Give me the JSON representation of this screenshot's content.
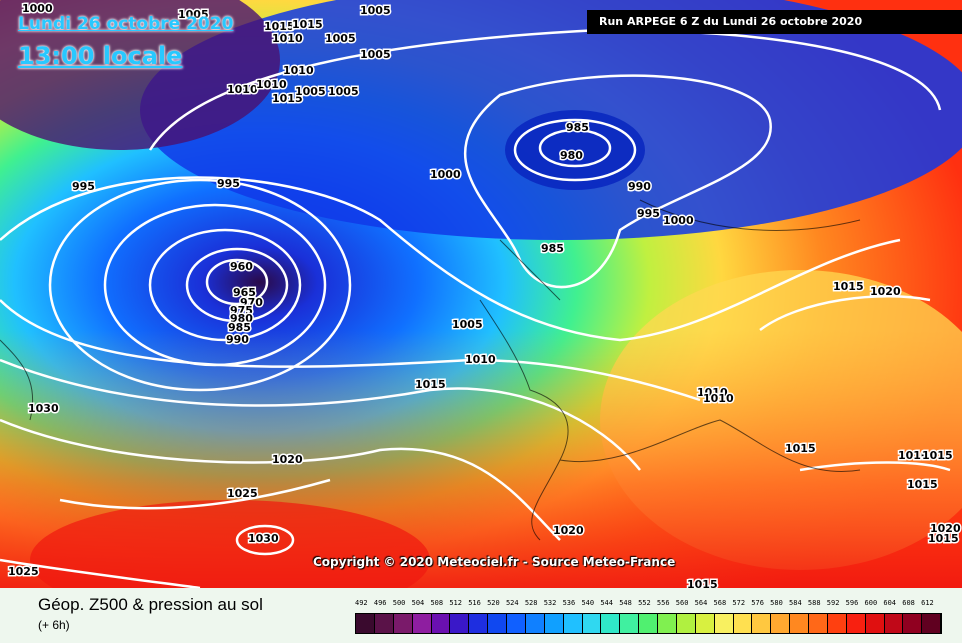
{
  "map": {
    "title_date": "Lundi 26 octobre 2020",
    "title_time": "13:00 locale",
    "run_info": "Run ARPEGE 6 Z du Lundi 26 octobre 2020",
    "copyright": "Copyright © 2020 Meteociel.fr - Source Meteo-France",
    "isobar_labels": [
      "1000",
      "1005",
      "1005",
      "1015",
      "1015",
      "1010",
      "1005",
      "1005",
      "1005",
      "1010",
      "1010",
      "1010",
      "1015",
      "1005",
      "985",
      "980",
      "1000",
      "995",
      "995",
      "990",
      "995",
      "1000",
      "960",
      "965",
      "970",
      "975",
      "980",
      "985",
      "990",
      "985",
      "1005",
      "1010",
      "1015",
      "1030",
      "1020",
      "1025",
      "1030",
      "1025",
      "1020",
      "1015",
      "1020",
      "1010",
      "1010",
      "1015",
      "1010",
      "1015",
      "1015",
      "1015",
      "1020",
      "1015"
    ]
  },
  "legend": {
    "title": "Géop. Z500 & pression au sol",
    "subtitle": "(+ 6h)",
    "scale_values": [
      "492",
      "496",
      "500",
      "504",
      "508",
      "512",
      "516",
      "520",
      "524",
      "528",
      "532",
      "536",
      "540",
      "544",
      "548",
      "552",
      "556",
      "560",
      "564",
      "568",
      "572",
      "576",
      "580",
      "584",
      "588",
      "592",
      "596",
      "600",
      "604",
      "608",
      "612"
    ],
    "scale_colors": [
      "#3a0a2e",
      "#5a1248",
      "#7a1a6a",
      "#8e1ea0",
      "#6a10b0",
      "#3a18c8",
      "#1e2ee0",
      "#1048f0",
      "#1060ff",
      "#1080ff",
      "#10a0ff",
      "#20c0ff",
      "#30d8f0",
      "#30e8c8",
      "#40f0a0",
      "#50f070",
      "#80f050",
      "#b0f040",
      "#d8f040",
      "#f8f060",
      "#ffe050",
      "#ffc840",
      "#ffa830",
      "#ff8820",
      "#ff6818",
      "#ff4010",
      "#f82010",
      "#e01010",
      "#c00818",
      "#900020",
      "#600020"
    ]
  }
}
